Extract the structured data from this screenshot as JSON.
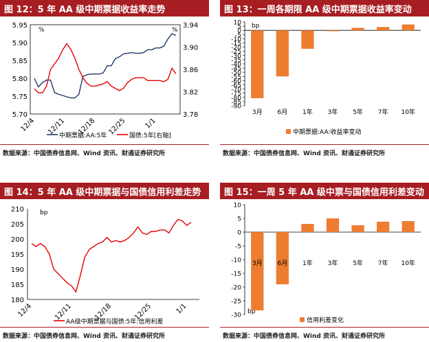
{
  "panels": [
    {
      "title": "图 12：5 年 AA 级中期票据收益率走势",
      "source": "数据来源：中国债券信息网、Wind 资讯、财通证券研究所",
      "chart_data": {
        "type": "line",
        "x_ticks": [
          "12/4",
          "12/11",
          "12/18",
          "12/25",
          "1/1"
        ],
        "y_left": {
          "unit": "%",
          "ticks": [
            "5.95",
            "5.90",
            "5.85",
            "5.80",
            "5.75",
            "5.70"
          ],
          "ylim": [
            5.7,
            5.95
          ]
        },
        "y_right": {
          "unit": "%",
          "ticks": [
            "3.94",
            "3.90",
            "3.86",
            "3.82",
            "3.78"
          ],
          "ylim": [
            3.78,
            3.94
          ]
        },
        "series": [
          {
            "name": "中期票据:AA:5年",
            "axis": "left",
            "color": "#1f3864",
            "values": [
              5.8,
              5.776,
              5.788,
              5.795,
              5.795,
              5.76,
              5.755,
              5.752,
              5.748,
              5.745,
              5.745,
              5.755,
              5.805,
              5.81,
              5.812,
              5.812,
              5.812,
              5.815,
              5.835,
              5.835,
              5.855,
              5.86,
              5.868,
              5.87,
              5.872,
              5.87,
              5.87,
              5.872,
              5.88,
              5.88,
              5.885,
              5.885,
              5.89,
              5.91,
              5.925,
              5.92
            ]
          },
          {
            "name": "国债:5年[右轴]",
            "axis": "right",
            "color": "#e60000",
            "values": [
              3.825,
              3.818,
              3.818,
              3.83,
              3.86,
              3.87,
              3.88,
              3.895,
              3.906,
              3.896,
              3.88,
              3.86,
              3.845,
              3.835,
              3.83,
              3.83,
              3.832,
              3.834,
              3.838,
              3.83,
              3.826,
              3.822,
              3.826,
              3.836,
              3.842,
              3.845,
              3.845,
              3.845,
              3.84,
              3.84,
              3.84,
              3.84,
              3.838,
              3.842,
              3.862,
              3.852
            ]
          }
        ]
      }
    },
    {
      "title": "图 13：一周各期限 AA 级中期票据收益率变动",
      "source": "数据来源：中国债券信息网、Wind 资讯、财通证券研究所",
      "chart_data": {
        "type": "bar",
        "unit_label": "bp",
        "categories": [
          "3月",
          "6月",
          "1年",
          "3年",
          "5年",
          "7年",
          "10年"
        ],
        "values": [
          -81,
          -55,
          -22,
          -1,
          3,
          4,
          7
        ],
        "ylim": [
          -90,
          10
        ],
        "y_ticks": [
          "10",
          "5",
          "0",
          "-5",
          "-10",
          "-15",
          "-20",
          "-25",
          "-30",
          "-35",
          "-40",
          "-45",
          "-50",
          "-55",
          "-60",
          "-65",
          "-70",
          "-75",
          "-80",
          "-85",
          "-90"
        ],
        "series": [
          {
            "name": "中期票据:AA:收益率变动",
            "color": "#ed7d31"
          }
        ]
      }
    },
    {
      "title": "图 14：5 年 AA 级中期票据与国债信用利差走势",
      "source": "数据来源：中国债券信息网、Wind 资讯、财通证券研究所",
      "chart_data": {
        "type": "line",
        "unit_label": "bp",
        "x_ticks": [
          "12/4",
          "12/11",
          "12/18",
          "12/25",
          "1/1"
        ],
        "ylim": [
          180,
          210
        ],
        "y_ticks": [
          "210",
          "205",
          "200",
          "195",
          "190",
          "185",
          "180"
        ],
        "series": [
          {
            "name": "AA级中期票据与国债:5年:信用利差",
            "color": "#e60000",
            "values": [
              198.5,
              197.5,
              198.5,
              197.5,
              195,
              190,
              188.5,
              187,
              185.5,
              184.5,
              182.5,
              188,
              194,
              196.5,
              197.5,
              198.5,
              199,
              200.5,
              199,
              199.5,
              199,
              199.5,
              200.5,
              202,
              204,
              202,
              201.5,
              202.5,
              202.5,
              203,
              203,
              202,
              204.5,
              206.5,
              206,
              204.5,
              205.5
            ]
          }
        ]
      }
    },
    {
      "title": "图 15：一周 5 年 AA 级中票与国债信用利差变动",
      "source": "数据来源：中国债券信息网、Wind 资讯、财通证券研究所",
      "chart_data": {
        "type": "bar",
        "unit_label": "bp",
        "categories": [
          "3月",
          "6月",
          "1年",
          "3年",
          "5年",
          "7年",
          "10年"
        ],
        "values": [
          -28.5,
          -19,
          3,
          5,
          2.5,
          3.8,
          4
        ],
        "ylim": [
          -30,
          10
        ],
        "y_ticks": [
          "10",
          "5",
          "0",
          "-5",
          "-10",
          "-15",
          "-20",
          "-25",
          "-30"
        ],
        "series": [
          {
            "name": "信用利差变化",
            "color": "#ed7d31"
          }
        ]
      }
    }
  ]
}
